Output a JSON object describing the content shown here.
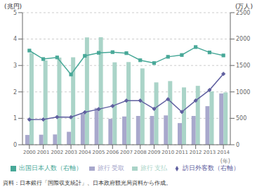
{
  "chart_data": {
    "type": "bar",
    "categories": [
      "2000",
      "2001",
      "2002",
      "2003",
      "2004",
      "2005",
      "2006",
      "2007",
      "2008",
      "2009",
      "2010",
      "2011",
      "2012",
      "2013",
      "2014"
    ],
    "series": [
      {
        "name": "旅行 受取",
        "type": "bar",
        "color": "#a8a8cc",
        "values": [
          0.37,
          0.38,
          0.39,
          0.49,
          1.17,
          1.39,
          0.98,
          1.07,
          1.09,
          1.09,
          1.11,
          0.82,
          1.09,
          1.46,
          1.94
        ]
      },
      {
        "name": "旅行 支払",
        "type": "bar",
        "color": "#aad4c8",
        "values": [
          3.47,
          3.19,
          3.3,
          3.31,
          4.06,
          4.07,
          3.12,
          3.13,
          2.89,
          2.36,
          2.41,
          2.17,
          2.23,
          2.02,
          1.98
        ]
      },
      {
        "name": "訪日外客数（右軸）",
        "type": "line",
        "axis": "y2",
        "color": "#6060a0",
        "marker": "diamond",
        "values": [
          477,
          478,
          524,
          521,
          614,
          673,
          733,
          835,
          835,
          679,
          861,
          622,
          836,
          1036,
          1341
        ]
      },
      {
        "name": "出国日本人数（右軸）",
        "type": "line",
        "axis": "y2",
        "color": "#48a898",
        "marker": "square",
        "values": [
          1782,
          1622,
          1652,
          1330,
          1683,
          1740,
          1753,
          1733,
          1599,
          1545,
          1664,
          1699,
          1849,
          1747,
          1690
        ]
      }
    ],
    "ylim": [
      0,
      5
    ],
    "yticks": [
      0,
      1,
      2,
      3,
      4,
      5
    ],
    "y2lim": [
      0,
      2500
    ],
    "y2ticks": [
      0,
      500,
      1000,
      1500,
      2000,
      2500
    ],
    "ylabel": "(兆円)",
    "y2label": "(万人)",
    "xlabel": "(年)",
    "grid": true,
    "legend": "bottom",
    "annotations": [
      "資料：日本銀行「国際収支統計」、日本政府観光局資料から作成。"
    ]
  }
}
